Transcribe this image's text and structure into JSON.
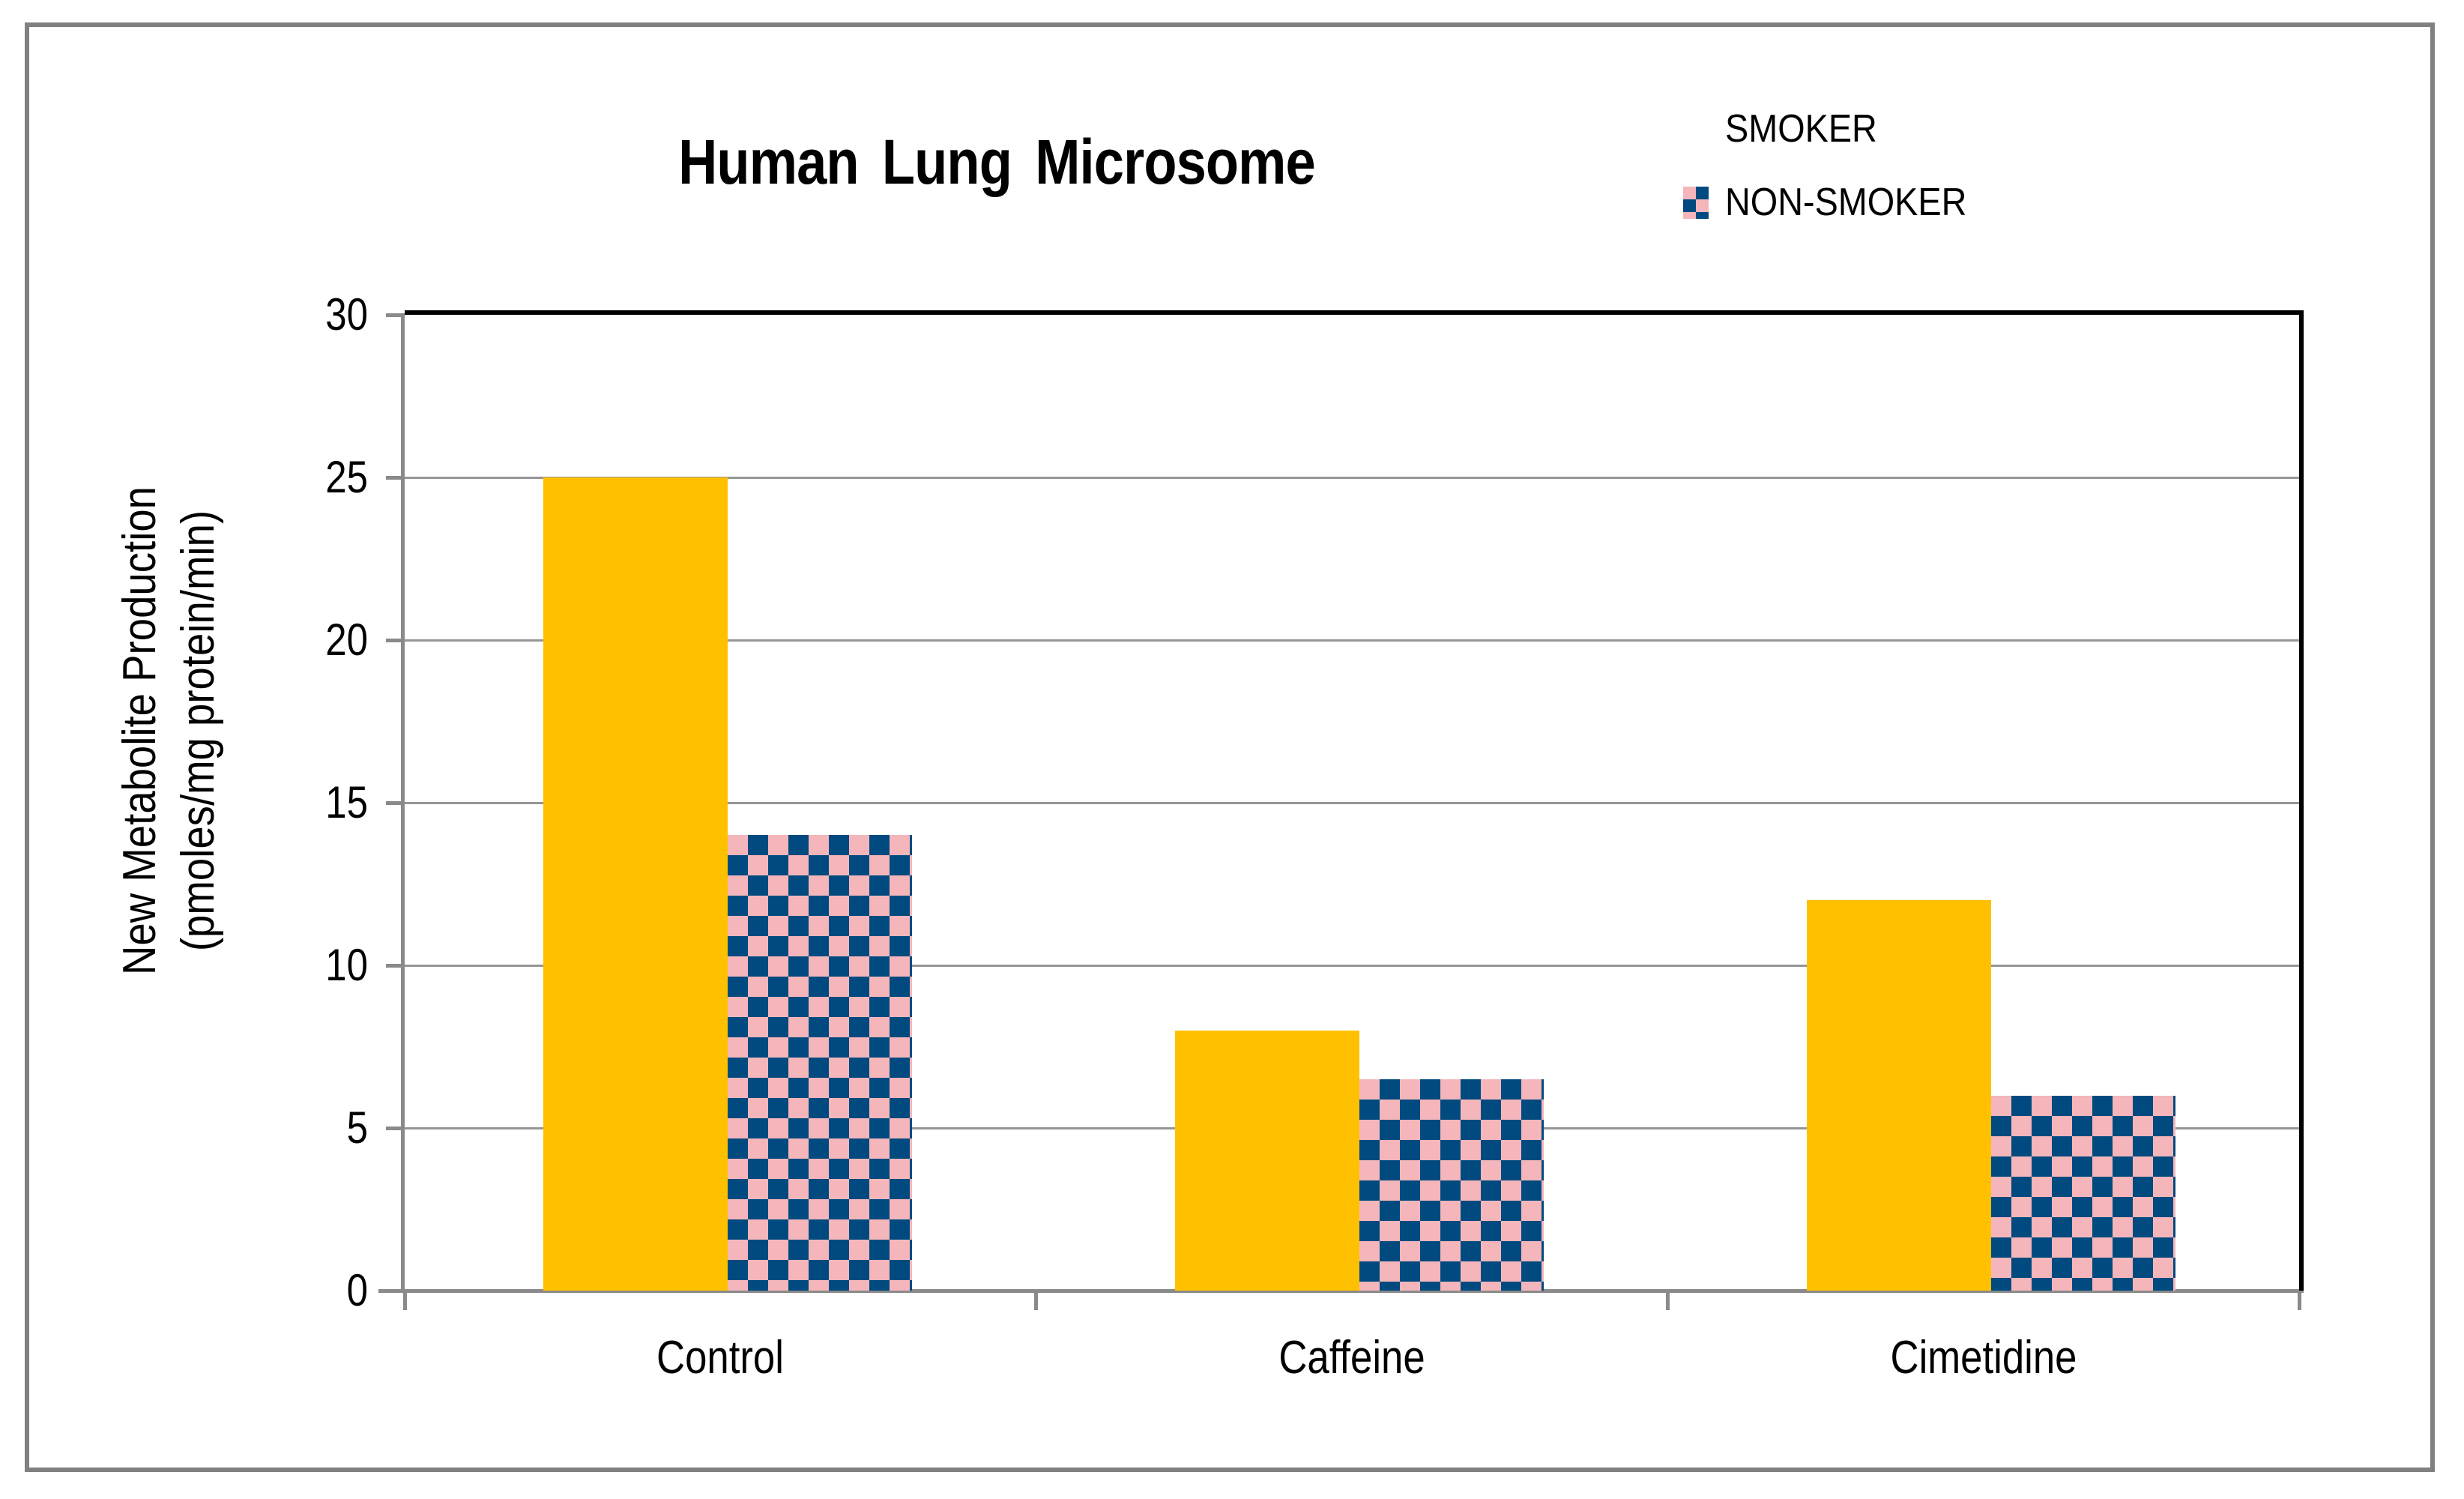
{
  "figure": {
    "border_color": "#808080",
    "axis_color": "#8a8a8a",
    "gridline_color": "#969696"
  },
  "chart_data": {
    "type": "bar",
    "title": "Human Lung Microsome",
    "categories": [
      "Control",
      "Caffeine",
      "Cimetidine"
    ],
    "series": [
      {
        "name": "SMOKER",
        "style": "solid",
        "color": "#FFC000",
        "values": [
          25,
          8,
          12
        ]
      },
      {
        "name": "NON-SMOKER",
        "style": "checker",
        "pattern_colors": [
          "#004A7F",
          "#F4B6BA"
        ],
        "values": [
          14,
          6.5,
          6
        ]
      }
    ],
    "ylabel_line1": "New Metabolite Production",
    "ylabel_line2": "(pmoles/mg protein/min)",
    "xlabel": "",
    "ylim": [
      0,
      30
    ],
    "yticks": [
      0,
      5,
      10,
      15,
      20,
      25,
      30
    ],
    "grid": "horizontal-gray",
    "legend_position": "top-right"
  }
}
